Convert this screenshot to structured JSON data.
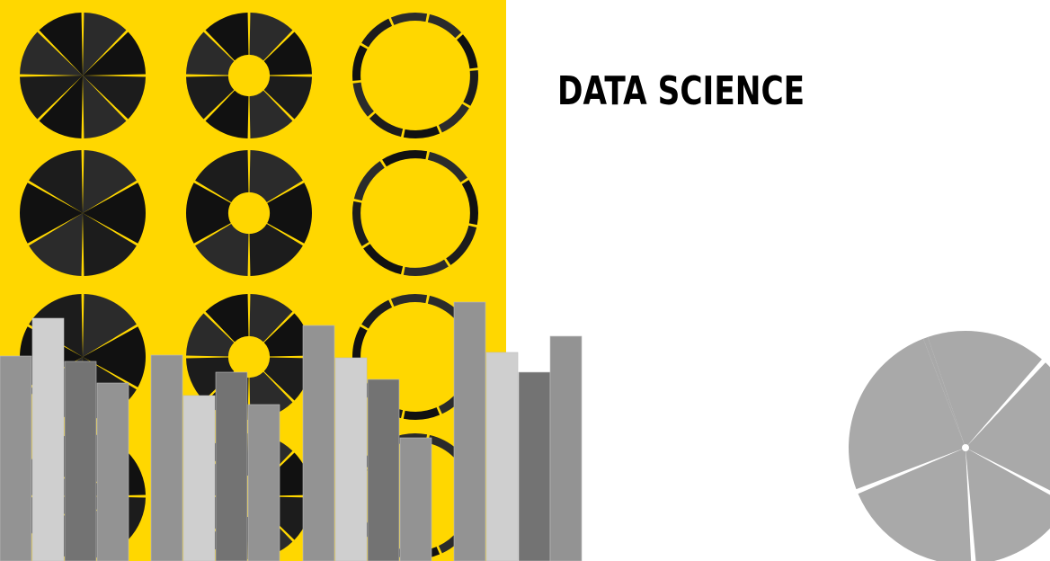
{
  "title": "DATA SCIENCE",
  "colors": {
    "yellow": "#FFD700",
    "dark": "#1e1e1e",
    "gray_dark": "#737373",
    "gray_mid": "#939393",
    "gray_light": "#cfcfcf",
    "pie_gray": "#a9a9a9"
  },
  "icons": {
    "donut_grid": "donut-chart-pattern",
    "bars": "bar-chart-graphic",
    "pie": "pie-chart-graphic"
  }
}
